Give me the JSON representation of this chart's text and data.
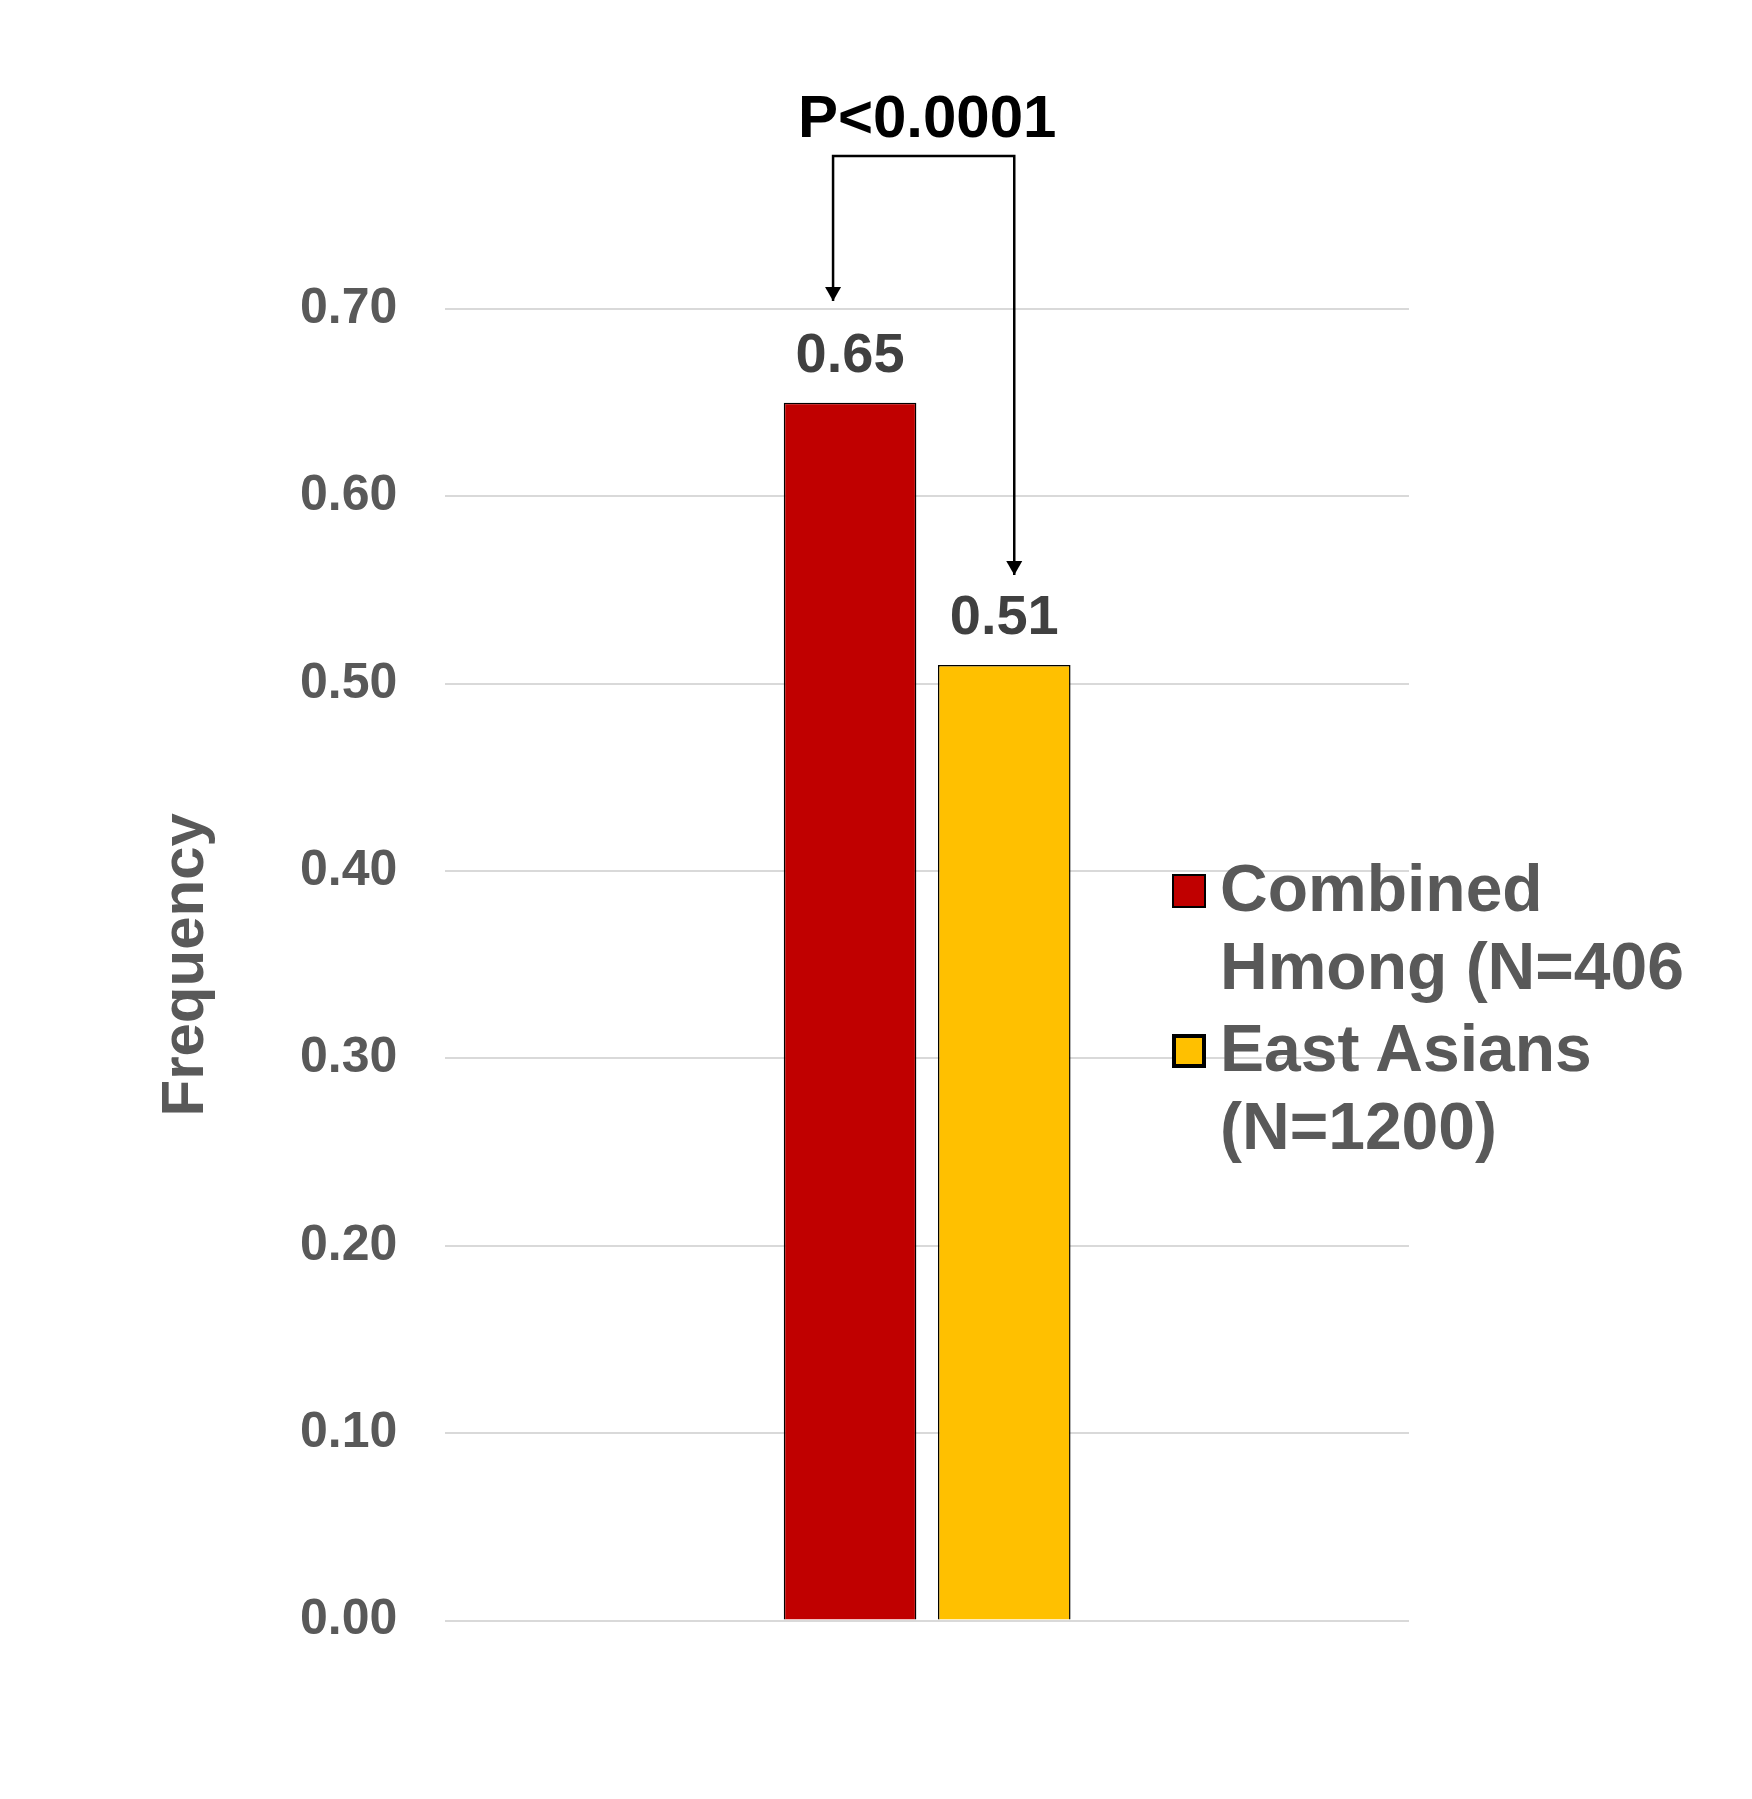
{
  "chart_data": {
    "type": "bar",
    "categories": [
      null
    ],
    "ylabel": "Frequency",
    "series": [
      {
        "name": "Combined Hmong (N=406",
        "color": "#c00000",
        "values": [
          0.65
        ]
      },
      {
        "name": "East Asians (N=1200)",
        "color": "#ffc000",
        "values": [
          0.51
        ]
      }
    ],
    "ylim": [
      0,
      0.7
    ],
    "yticks": [
      {
        "value": 0,
        "label": "0.00"
      },
      {
        "value": 0.1,
        "label": "0.10"
      },
      {
        "value": 0.2,
        "label": "0.20"
      },
      {
        "value": 0.3,
        "label": "0.30"
      },
      {
        "value": 0.4,
        "label": "0.40"
      },
      {
        "value": 0.5,
        "label": "0.50"
      },
      {
        "value": 0.6,
        "label": "0.60"
      },
      {
        "value": 0.7,
        "label": "0.70"
      }
    ],
    "grid": "y",
    "legend": "right",
    "data_labels": true,
    "annotations": [
      "P<0.0001"
    ]
  }
}
